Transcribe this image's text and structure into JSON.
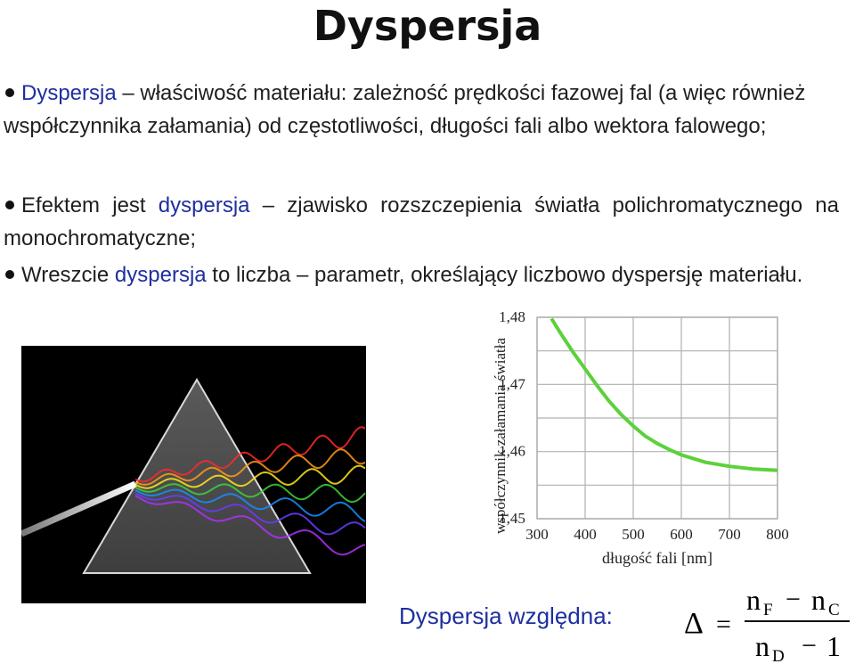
{
  "title": "Dyspersja",
  "bullets": [
    {
      "highlight": "Dyspersja",
      "text": " – właściwość materiału: zależność prędkości fazowej fal (a więc również współczynnika załamania) od częstotliwości, długości fali albo wektora falowego;"
    },
    {
      "prefix": "Efektem jest ",
      "highlight": "dyspersja",
      "text": " – zjawisko rozszczepienia światła polichromatycznego na monochromatyczne;"
    },
    {
      "prefix": "Wreszcie ",
      "highlight": "dyspersja",
      "text": " to liczba – parametr, określający liczbowo dyspersję materiału."
    }
  ],
  "chart_data": {
    "type": "line",
    "title": "",
    "xlabel": "długość fali [nm]",
    "ylabel": "współczynnik załamania światła",
    "xlim": [
      300,
      800
    ],
    "ylim": [
      1.45,
      1.48
    ],
    "x_ticks": [
      300,
      400,
      500,
      600,
      700,
      800
    ],
    "x_tick_labels": [
      "300",
      "400",
      "500",
      "600",
      "700",
      "800"
    ],
    "y_ticks": [
      1.45,
      1.46,
      1.47,
      1.48
    ],
    "y_tick_labels": [
      "1,45",
      "1,46",
      "1,47",
      "1,48"
    ],
    "grid": true,
    "series": [
      {
        "color": "#5cd13a",
        "x": [
          330,
          350,
          375,
          400,
          425,
          450,
          475,
          500,
          525,
          550,
          575,
          600,
          650,
          700,
          750,
          800
        ],
        "y": [
          1.4798,
          1.4775,
          1.4748,
          1.4723,
          1.4698,
          1.4675,
          1.4655,
          1.4638,
          1.4623,
          1.4612,
          1.4603,
          1.4595,
          1.4584,
          1.4578,
          1.4574,
          1.4572
        ]
      }
    ]
  },
  "formula": {
    "label": "Dyspersja względna:",
    "delta": "Δ",
    "equals": "=",
    "num_n1": "n",
    "num_sub1": "F",
    "minus": "−",
    "num_n2": "n",
    "num_sub2": "C",
    "den_n": "n",
    "den_sub": "D",
    "den_one": "1"
  },
  "colors": {
    "highlight": "#1e2fa0",
    "curve": "#5cd13a",
    "grid": "#b0b0b0"
  }
}
